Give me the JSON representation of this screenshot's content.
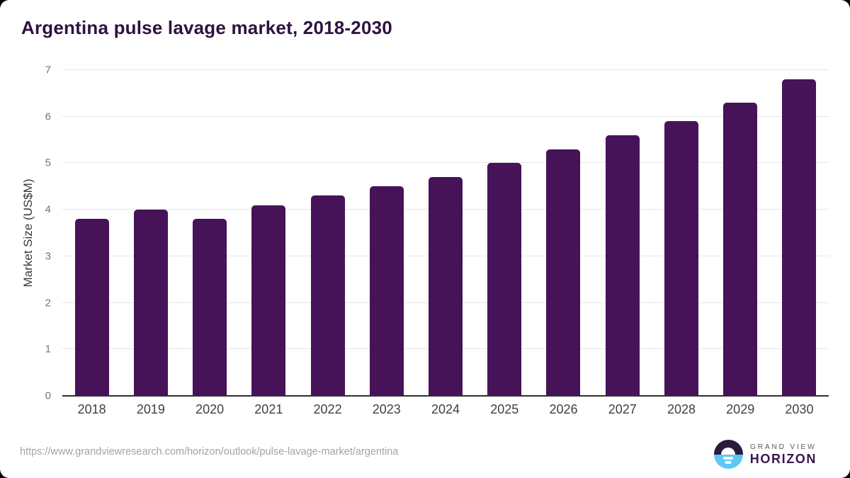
{
  "chart_data": {
    "type": "bar",
    "title": "Argentina pulse lavage market, 2018-2030",
    "title_color": "#2e1240",
    "categories": [
      "2018",
      "2019",
      "2020",
      "2021",
      "2022",
      "2023",
      "2024",
      "2025",
      "2026",
      "2027",
      "2028",
      "2029",
      "2030"
    ],
    "values": [
      3.8,
      4.0,
      3.8,
      4.1,
      4.3,
      4.5,
      4.7,
      5.0,
      5.3,
      5.6,
      5.9,
      6.3,
      6.8
    ],
    "xlabel": "",
    "ylabel": "Market Size (US$M)",
    "ylim": [
      0,
      7
    ],
    "yticks": [
      0,
      1,
      2,
      3,
      4,
      5,
      6,
      7
    ],
    "grid": true,
    "legend": "none",
    "bar_color": "#461358",
    "gridline_color": "#e7e7e7",
    "axis_line_color": "#2f2f2f",
    "y_tick_label_color": "#757575",
    "x_tick_label_color": "#414141"
  },
  "footer": {
    "source_url": "https://www.grandviewresearch.com/horizon/outlook/pulse-lavage-market/argentina",
    "logo": {
      "line1": "GRAND VIEW",
      "line2": "HORIZON",
      "circle_top_color": "#2a1a3e",
      "circle_bottom_color": "#5ec8f2",
      "horizon_glyph_color": "#ffffff"
    }
  }
}
